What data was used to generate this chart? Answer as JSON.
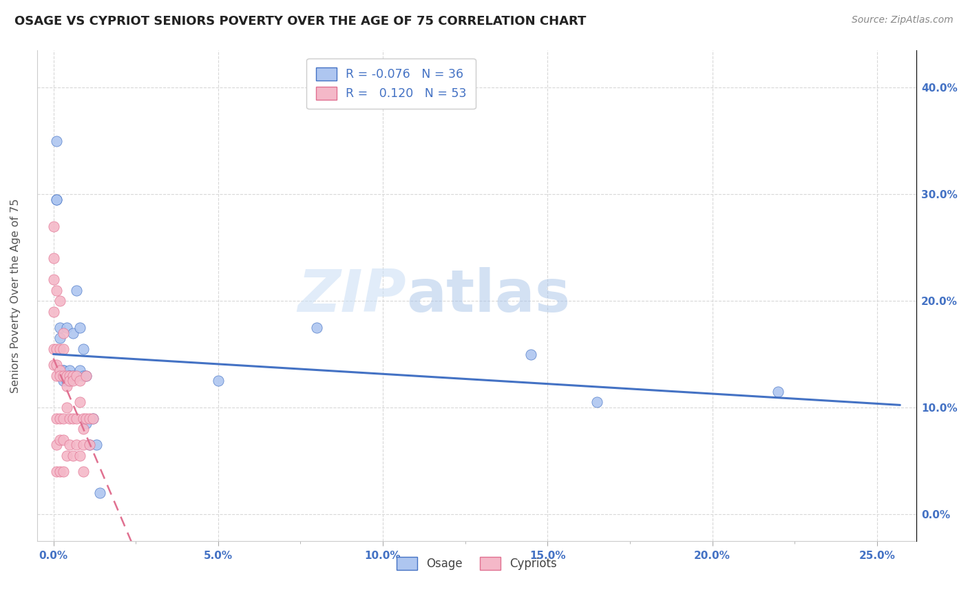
{
  "title": "OSAGE VS CYPRIOT SENIORS POVERTY OVER THE AGE OF 75 CORRELATION CHART",
  "source": "Source: ZipAtlas.com",
  "xlabel_ticks": [
    "0.0%",
    "5.0%",
    "10.0%",
    "15.0%",
    "20.0%",
    "25.0%"
  ],
  "ylabel_ticks": [
    "0.0%",
    "10.0%",
    "20.0%",
    "30.0%",
    "40.0%"
  ],
  "xlabel_vals": [
    0.0,
    0.05,
    0.1,
    0.15,
    0.2,
    0.25
  ],
  "ylabel_vals": [
    0.0,
    0.1,
    0.2,
    0.3,
    0.4
  ],
  "xlim": [
    -0.005,
    0.262
  ],
  "ylim": [
    -0.025,
    0.435
  ],
  "ylabel": "Seniors Poverty Over the Age of 75",
  "osage_color": "#aec6f0",
  "cypriot_color": "#f4b8c8",
  "osage_edge_color": "#4472c4",
  "cypriot_edge_color": "#e07090",
  "osage_line_color": "#4472c4",
  "cypriot_line_color": "#e07090",
  "R_osage": -0.076,
  "N_osage": 36,
  "R_cypriot": 0.12,
  "N_cypriot": 53,
  "osage_x": [
    0.001,
    0.001,
    0.001,
    0.002,
    0.002,
    0.003,
    0.003,
    0.003,
    0.003,
    0.004,
    0.004,
    0.004,
    0.005,
    0.005,
    0.005,
    0.005,
    0.005,
    0.006,
    0.006,
    0.007,
    0.007,
    0.008,
    0.008,
    0.009,
    0.009,
    0.01,
    0.01,
    0.011,
    0.012,
    0.013,
    0.014,
    0.05,
    0.08,
    0.145,
    0.165,
    0.22
  ],
  "osage_y": [
    0.35,
    0.295,
    0.295,
    0.175,
    0.165,
    0.135,
    0.135,
    0.13,
    0.125,
    0.175,
    0.13,
    0.125,
    0.13,
    0.135,
    0.13,
    0.13,
    0.125,
    0.17,
    0.13,
    0.21,
    0.13,
    0.175,
    0.135,
    0.155,
    0.13,
    0.13,
    0.085,
    0.065,
    0.09,
    0.065,
    0.02,
    0.125,
    0.175,
    0.15,
    0.105,
    0.115
  ],
  "cypriot_x": [
    0.0,
    0.0,
    0.0,
    0.0,
    0.0,
    0.0,
    0.001,
    0.001,
    0.001,
    0.001,
    0.001,
    0.001,
    0.001,
    0.002,
    0.002,
    0.002,
    0.002,
    0.002,
    0.002,
    0.002,
    0.003,
    0.003,
    0.003,
    0.003,
    0.003,
    0.003,
    0.004,
    0.004,
    0.004,
    0.004,
    0.005,
    0.005,
    0.005,
    0.005,
    0.006,
    0.006,
    0.006,
    0.006,
    0.007,
    0.007,
    0.007,
    0.008,
    0.008,
    0.008,
    0.009,
    0.009,
    0.009,
    0.009,
    0.01,
    0.01,
    0.011,
    0.011,
    0.012
  ],
  "cypriot_y": [
    0.27,
    0.24,
    0.22,
    0.19,
    0.155,
    0.14,
    0.21,
    0.155,
    0.14,
    0.13,
    0.09,
    0.065,
    0.04,
    0.2,
    0.155,
    0.135,
    0.13,
    0.09,
    0.07,
    0.04,
    0.17,
    0.155,
    0.13,
    0.09,
    0.07,
    0.04,
    0.13,
    0.12,
    0.1,
    0.055,
    0.13,
    0.125,
    0.09,
    0.065,
    0.13,
    0.125,
    0.09,
    0.055,
    0.13,
    0.09,
    0.065,
    0.125,
    0.105,
    0.055,
    0.09,
    0.08,
    0.065,
    0.04,
    0.13,
    0.09,
    0.09,
    0.065,
    0.09
  ],
  "watermark_zip": "ZIP",
  "watermark_atlas": "atlas",
  "background_color": "#ffffff",
  "grid_color": "#d8d8d8",
  "minor_xticks": [
    0.0,
    0.025,
    0.05,
    0.075,
    0.1,
    0.125,
    0.15,
    0.175,
    0.2,
    0.225,
    0.25
  ]
}
